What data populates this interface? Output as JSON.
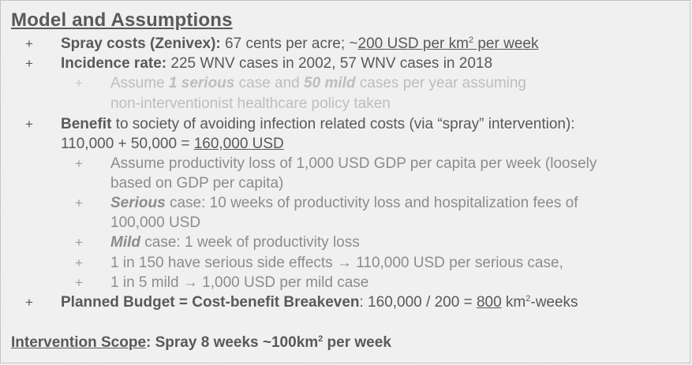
{
  "title": "Model and Assumptions",
  "bullet_symbol": "+",
  "spray": {
    "label": "Spray costs (Zenivex):",
    "text": "67 cents per acre; ~",
    "cost_underlined": "200 USD per km",
    "sup": "2",
    "cost_suffix": " per week"
  },
  "incidence": {
    "label": "Incidence rate:",
    "text": "225 WNV cases in 2002, 57 WNV cases in 2018",
    "sub": {
      "pre": "Assume ",
      "serious_count": "1 serious",
      "mid": " case and ",
      "mild_count": "50 mild",
      "post": " cases per year assuming",
      "line2": "non-interventionist healthcare policy taken"
    }
  },
  "benefit": {
    "label": "Benefit",
    "text": " to society of avoiding infection related costs (via “spray” intervention):",
    "line2_pre": "110,000 + 50,000 = ",
    "total": "160,000 USD",
    "subs": {
      "productivity_line1": "Assume productivity loss of 1,000 USD GDP per capita per week (loosely",
      "productivity_line2": "based on GDP per capita)",
      "serious_label": "Serious",
      "serious_line1": " case: 10 weeks of productivity loss and hospitalization fees of",
      "serious_line2": "100,000 USD",
      "mild_label": "Mild",
      "mild_text": " case: 1 week of productivity loss",
      "side_effects": "1 in 150 have serious side effects → 110,000 USD per serious case,",
      "mild_ratio": "1 in 5 mild → 1,000 USD per mild case"
    }
  },
  "budget": {
    "label": "Planned Budget = Cost-benefit Breakeven",
    "text": ": 160,000 / 200 = ",
    "value": "800",
    "unit": " km",
    "sup": "2",
    "unit_suffix": "-weeks"
  },
  "scope": {
    "label": "Intervention Scope",
    "text": ": Spray 8 weeks ~100km",
    "sup": "2",
    "suffix": " per week"
  }
}
